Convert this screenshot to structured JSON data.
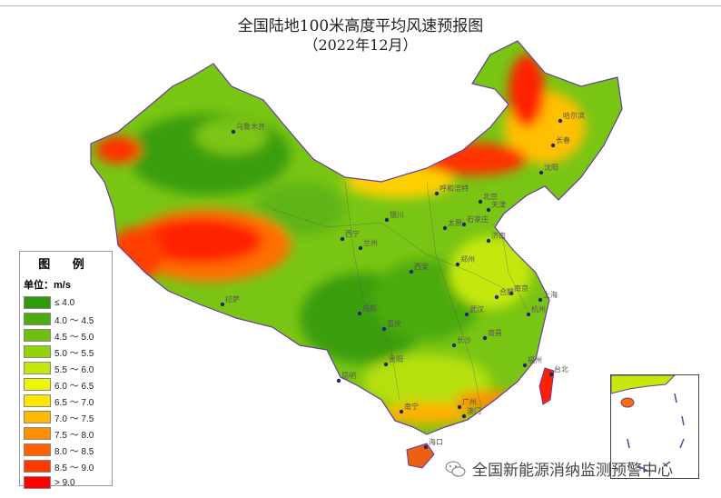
{
  "header": {
    "title": "全国陆地100米高度平均风速预报图",
    "subtitle": "（2022年12月）"
  },
  "legend": {
    "title": "图 例",
    "unit": "单位：m/s",
    "items": [
      {
        "label": "≤ 4.0",
        "color": "#2f9a0c"
      },
      {
        "label": "4.0 ～ 4.5",
        "color": "#4cab10"
      },
      {
        "label": "4.5 ～ 5.0",
        "color": "#6fbf12"
      },
      {
        "label": "5.0 ～ 5.5",
        "color": "#95d20c"
      },
      {
        "label": "5.5 ～ 6.0",
        "color": "#c4e80a"
      },
      {
        "label": "6.0 ～ 6.5",
        "color": "#eef505"
      },
      {
        "label": "6.5 ～ 7.0",
        "color": "#ffe600"
      },
      {
        "label": "7.0 ～ 7.5",
        "color": "#ffb900"
      },
      {
        "label": "7.5 ～ 8.0",
        "color": "#ff8e00"
      },
      {
        "label": "8.0 ～ 8.5",
        "color": "#ff6000"
      },
      {
        "label": "8.5 ～ 9.0",
        "color": "#ff3a00"
      },
      {
        "label": "> 9.0",
        "color": "#ff0000"
      }
    ]
  },
  "cities": [
    {
      "name": "乌鲁木齐"
    },
    {
      "name": "哈尔滨"
    },
    {
      "name": "长春"
    },
    {
      "name": "沈阳"
    },
    {
      "name": "呼和浩特"
    },
    {
      "name": "北京"
    },
    {
      "name": "天津"
    },
    {
      "name": "银川"
    },
    {
      "name": "石家庄"
    },
    {
      "name": "太原"
    },
    {
      "name": "西宁"
    },
    {
      "name": "兰州"
    },
    {
      "name": "济南"
    },
    {
      "name": "郑州"
    },
    {
      "name": "西安"
    },
    {
      "name": "合肥"
    },
    {
      "name": "南京"
    },
    {
      "name": "上海"
    },
    {
      "name": "成都"
    },
    {
      "name": "武汉"
    },
    {
      "name": "杭州"
    },
    {
      "name": "重庆"
    },
    {
      "name": "长沙"
    },
    {
      "name": "南昌"
    },
    {
      "name": "贵阳"
    },
    {
      "name": "福州"
    },
    {
      "name": "台北"
    },
    {
      "name": "昆明"
    },
    {
      "name": "南宁"
    },
    {
      "name": "广州"
    },
    {
      "name": "澳门"
    },
    {
      "name": "海口"
    },
    {
      "name": "拉萨"
    }
  ],
  "watermark": {
    "text": "全国新能源消纳监测预警中心",
    "icon": "wechat-icon"
  }
}
